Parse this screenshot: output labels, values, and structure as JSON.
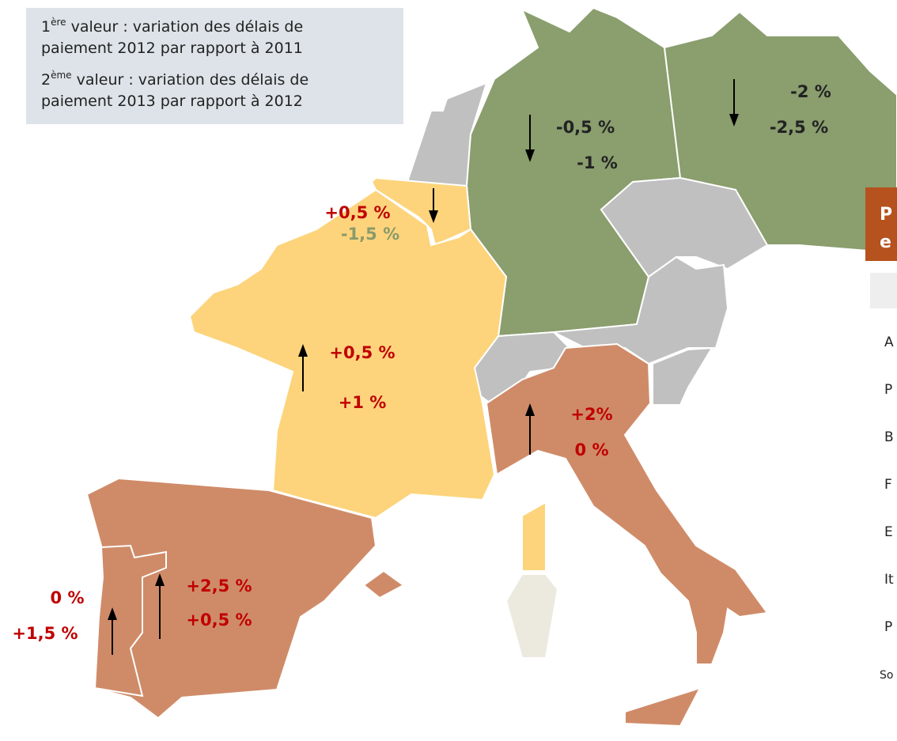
{
  "legend": [
    {
      "number": "1",
      "sup": "ère",
      "line1": " valeur : variation des délais de",
      "line2": "paiement 2012 par rapport à 2011"
    },
    {
      "number": "2",
      "sup": "ème",
      "line1": " valeur : variation des délais de",
      "line2": "paiement 2013 par rapport à 2012"
    }
  ],
  "regions": [
    {
      "values": [
        "-0,5 %",
        "-1 %"
      ],
      "colors": [
        "#222222",
        "#222222"
      ],
      "arrow": "down"
    },
    {
      "values": [
        "-2 %",
        "-2,5 %"
      ],
      "colors": [
        "#222222",
        "#222222"
      ],
      "arrow": "down"
    },
    {
      "values": [
        "+0,5 %",
        "-1,5 %"
      ],
      "colors": [
        "#c00000",
        "#8a9a6a"
      ],
      "arrow": "down"
    },
    {
      "values": [
        "+0,5 %",
        "+1 %"
      ],
      "colors": [
        "#c00000",
        "#c00000"
      ],
      "arrow": "up"
    },
    {
      "values": [
        "+2%",
        "0 %"
      ],
      "colors": [
        "#c00000",
        "#c00000"
      ],
      "arrow": "up"
    },
    {
      "values": [
        "+2,5 %",
        "+0,5 %"
      ],
      "colors": [
        "#c00000",
        "#c00000"
      ],
      "arrow": "up"
    },
    {
      "values": [
        "0 %",
        "+1,5 %"
      ],
      "colors": [
        "#c00000",
        "#c00000"
      ],
      "arrow": "up"
    }
  ],
  "table": {
    "title": [
      "P",
      "e"
    ],
    "rows": [
      "A",
      "P",
      "B",
      "F",
      "E",
      "It",
      "P"
    ],
    "source": "So"
  }
}
